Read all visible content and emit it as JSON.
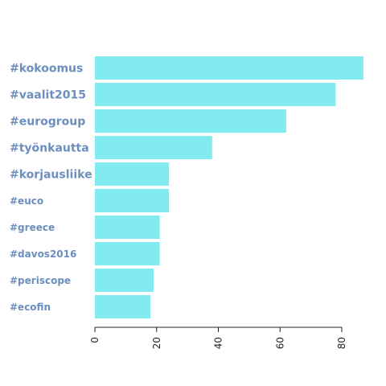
{
  "chart_data": {
    "type": "bar",
    "orientation": "horizontal",
    "categories": [
      "#kokoomus",
      "#vaalit2015",
      "#eurogroup",
      "#työnkautta",
      "#korjausliike",
      "#euco",
      "#greece",
      "#davos2016",
      "#periscope",
      "#ecofin"
    ],
    "values": [
      87,
      78,
      62,
      38,
      24,
      24,
      21,
      21,
      19,
      18
    ],
    "xticks": [
      0,
      20,
      40,
      60,
      80
    ],
    "xlim": [
      0,
      88
    ],
    "title": "",
    "xlabel": "",
    "ylabel": "",
    "grid": false,
    "colors": {
      "bar": "#82EBEF",
      "label": "#6C8EBF",
      "axis": "#222222"
    }
  }
}
